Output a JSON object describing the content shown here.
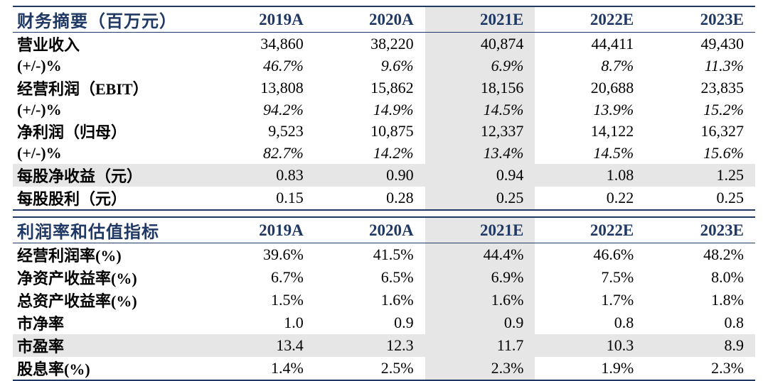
{
  "columns": [
    "2019A",
    "2020A",
    "2021E",
    "2022E",
    "2023E"
  ],
  "section1": {
    "title": "财务摘要（百万元）",
    "rows": [
      {
        "label": "营业收入",
        "values": [
          "34,860",
          "38,220",
          "40,874",
          "44,411",
          "49,430"
        ],
        "style": "normal"
      },
      {
        "label": "(+/-)%",
        "values": [
          "46.7%",
          "9.6%",
          "6.9%",
          "8.7%",
          "11.3%"
        ],
        "style": "pct"
      },
      {
        "label": "经营利润（EBIT）",
        "values": [
          "13,808",
          "15,862",
          "18,156",
          "20,688",
          "23,835"
        ],
        "style": "normal"
      },
      {
        "label": "(+/-)%",
        "values": [
          "94.2%",
          "14.9%",
          "14.5%",
          "13.9%",
          "15.2%"
        ],
        "style": "pct"
      },
      {
        "label": "净利润（归母）",
        "values": [
          "9,523",
          "10,875",
          "12,337",
          "14,122",
          "16,327"
        ],
        "style": "normal"
      },
      {
        "label": "(+/-)%",
        "values": [
          "82.7%",
          "14.2%",
          "13.4%",
          "14.5%",
          "15.6%"
        ],
        "style": "pct"
      },
      {
        "label": "每股净收益（元）",
        "values": [
          "0.83",
          "0.90",
          "0.94",
          "1.08",
          "1.25"
        ],
        "style": "shade"
      },
      {
        "label": "每股股利（元）",
        "values": [
          "0.15",
          "0.28",
          "0.25",
          "0.22",
          "0.25"
        ],
        "style": "normal"
      }
    ]
  },
  "section2": {
    "title": "利润率和估值指标",
    "rows": [
      {
        "label": "经营利润率(%)",
        "values": [
          "39.6%",
          "41.5%",
          "44.4%",
          "46.6%",
          "48.2%"
        ],
        "style": "normal"
      },
      {
        "label": "净资产收益率(%)",
        "values": [
          "6.7%",
          "6.5%",
          "6.9%",
          "7.5%",
          "8.0%"
        ],
        "style": "normal"
      },
      {
        "label": "总资产收益率(%)",
        "values": [
          "1.5%",
          "1.6%",
          "1.6%",
          "1.7%",
          "1.8%"
        ],
        "style": "normal"
      },
      {
        "label": "市净率",
        "values": [
          "1.0",
          "0.9",
          "0.9",
          "0.8",
          "0.8"
        ],
        "style": "normal"
      },
      {
        "label": "市盈率",
        "values": [
          "13.4",
          "12.3",
          "11.7",
          "10.3",
          "8.9"
        ],
        "style": "shade"
      },
      {
        "label": "股息率(%)",
        "values": [
          "1.4%",
          "2.5%",
          "2.3%",
          "1.9%",
          "2.3%"
        ],
        "style": "normal"
      }
    ]
  },
  "colors": {
    "header_text": "#1f3864",
    "rule": "#1f3864",
    "shade": "#e6e6e6"
  }
}
